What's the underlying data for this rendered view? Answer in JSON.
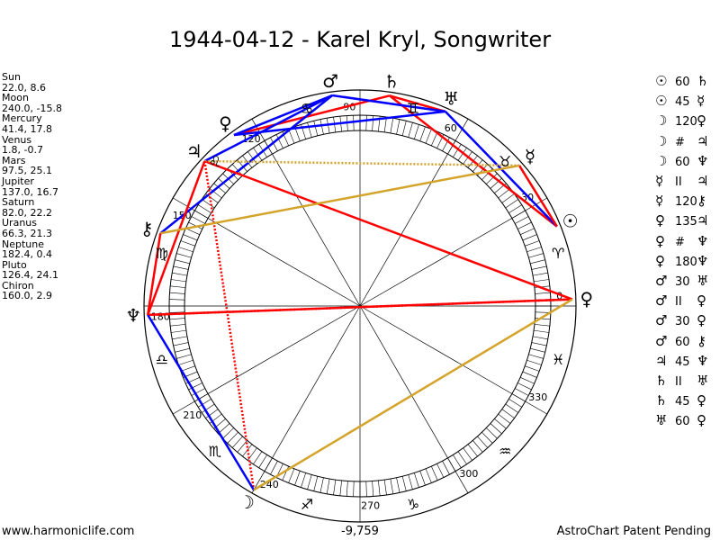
{
  "title": "1944-04-12 - Karel Kryl, Songwriter",
  "footer_left": "www.harmoniclife.com",
  "footer_right": "AstroChart Patent Pending",
  "center_value": "-9,759",
  "degree_labels": [
    "0",
    "30",
    "60",
    "90",
    "120",
    "150",
    "180",
    "210",
    "240",
    "270",
    "300",
    "330"
  ],
  "positions": [
    {
      "name": "Sun",
      "coords": "22.0, 8.6"
    },
    {
      "name": "Moon",
      "coords": "240.0, -15.8"
    },
    {
      "name": "Mercury",
      "coords": "41.4, 17.8"
    },
    {
      "name": "Venus",
      "coords": "1.8, -0.7"
    },
    {
      "name": "Mars",
      "coords": "97.5, 25.1"
    },
    {
      "name": "Jupiter",
      "coords": "137.0, 16.7"
    },
    {
      "name": "Saturn",
      "coords": "82.0, 22.2"
    },
    {
      "name": "Uranus",
      "coords": "66.3, 21.3"
    },
    {
      "name": "Neptune",
      "coords": "182.4, 0.4"
    },
    {
      "name": "Pluto",
      "coords": "126.4, 24.1"
    },
    {
      "name": "Chiron",
      "coords": "160.0, 2.9"
    }
  ],
  "aspects": [
    {
      "p1": "☉",
      "value": "60",
      "p2": "♄"
    },
    {
      "p1": "☉",
      "value": "45",
      "p2": "☿"
    },
    {
      "p1": "☽",
      "value": "120",
      "p2": "♀"
    },
    {
      "p1": "☽",
      "value": "#",
      "p2": "♃"
    },
    {
      "p1": "☽",
      "value": "60",
      "p2": "♆"
    },
    {
      "p1": "☿",
      "value": "II",
      "p2": "♃"
    },
    {
      "p1": "☿",
      "value": "120",
      "p2": "⚷"
    },
    {
      "p1": "♀",
      "value": "135",
      "p2": "♃"
    },
    {
      "p1": "♀",
      "value": "#",
      "p2": "♆"
    },
    {
      "p1": "♀",
      "value": "180",
      "p2": "♆"
    },
    {
      "p1": "♂",
      "value": "30",
      "p2": "♅"
    },
    {
      "p1": "♂",
      "value": "II",
      "p2": "♀"
    },
    {
      "p1": "♂",
      "value": "30",
      "p2": "♀"
    },
    {
      "p1": "♂",
      "value": "60",
      "p2": "⚷"
    },
    {
      "p1": "♃",
      "value": "45",
      "p2": "♆"
    },
    {
      "p1": "♄",
      "value": "II",
      "p2": "♅"
    },
    {
      "p1": "♄",
      "value": "45",
      "p2": "♀"
    },
    {
      "p1": "♅",
      "value": "60",
      "p2": "♀"
    }
  ],
  "planet_glyphs": [
    {
      "name": "sun",
      "glyph": "☉",
      "lon": 22.0,
      "color": "#000000"
    },
    {
      "name": "moon",
      "glyph": "☽",
      "lon": 240.0,
      "color": "#000000"
    },
    {
      "name": "mercury",
      "glyph": "☿",
      "lon": 41.4,
      "color": "#000000"
    },
    {
      "name": "venus",
      "glyph": "♀",
      "lon": 1.8,
      "color": "#000000"
    },
    {
      "name": "mars",
      "glyph": "♂",
      "lon": 97.5,
      "color": "#000000"
    },
    {
      "name": "jupiter",
      "glyph": "♃",
      "lon": 137.0,
      "color": "#000000"
    },
    {
      "name": "saturn",
      "glyph": "♄",
      "lon": 82.0,
      "color": "#000000"
    },
    {
      "name": "uranus",
      "glyph": "♅",
      "lon": 66.3,
      "color": "#000000"
    },
    {
      "name": "neptune",
      "glyph": "♆",
      "lon": 182.4,
      "color": "#000000"
    },
    {
      "name": "pluto",
      "glyph": "♀",
      "lon": 126.4,
      "color": "#000000"
    },
    {
      "name": "chiron",
      "glyph": "⚷",
      "lon": 160.0,
      "color": "#000000"
    }
  ],
  "sign_glyphs": [
    {
      "name": "aries",
      "glyph": "♈",
      "lon": 15
    },
    {
      "name": "taurus",
      "glyph": "♉",
      "lon": 45
    },
    {
      "name": "gemini",
      "glyph": "♊",
      "lon": 75
    },
    {
      "name": "cancer",
      "glyph": "♋",
      "lon": 105
    },
    {
      "name": "leo",
      "glyph": "♌",
      "lon": 135
    },
    {
      "name": "virgo",
      "glyph": "♍",
      "lon": 165
    },
    {
      "name": "libra",
      "glyph": "♎",
      "lon": 195
    },
    {
      "name": "scorpio",
      "glyph": "♏",
      "lon": 225
    },
    {
      "name": "sagittarius",
      "glyph": "♐",
      "lon": 255
    },
    {
      "name": "capricorn",
      "glyph": "♑",
      "lon": 285
    },
    {
      "name": "aquarius",
      "glyph": "♒",
      "lon": 315
    },
    {
      "name": "pisces",
      "glyph": "♓",
      "lon": 345
    }
  ],
  "aspect_lines": [
    {
      "from": 22.0,
      "to": 82.0,
      "color": "#ff0000",
      "style": "solid"
    },
    {
      "from": 22.0,
      "to": 66.3,
      "color": "#0000ff",
      "style": "solid"
    },
    {
      "from": 22.0,
      "to": 41.4,
      "color": "#ff0000",
      "style": "solid"
    },
    {
      "from": 82.0,
      "to": 66.3,
      "color": "#ff0000",
      "style": "solid"
    },
    {
      "from": 82.0,
      "to": 126.4,
      "color": "#ff0000",
      "style": "solid"
    },
    {
      "from": 66.3,
      "to": 126.4,
      "color": "#0000ff",
      "style": "solid"
    },
    {
      "from": 97.5,
      "to": 66.3,
      "color": "#0000ff",
      "style": "solid"
    },
    {
      "from": 97.5,
      "to": 126.4,
      "color": "#0000ff",
      "style": "solid"
    },
    {
      "from": 97.5,
      "to": 160.0,
      "color": "#0000ff",
      "style": "solid"
    },
    {
      "from": 97.5,
      "to": 137.0,
      "color": "#0000ff",
      "style": "solid"
    },
    {
      "from": 137.0,
      "to": 1.8,
      "color": "#ff0000",
      "style": "solid"
    },
    {
      "from": 137.0,
      "to": 182.4,
      "color": "#ff0000",
      "style": "solid"
    },
    {
      "from": 137.0,
      "to": 41.4,
      "color": "#d4a32a",
      "style": "dotted"
    },
    {
      "from": 137.0,
      "to": 240.0,
      "color": "#ff0000",
      "style": "dotted"
    },
    {
      "from": 1.8,
      "to": 182.4,
      "color": "#ff0000",
      "style": "solid"
    },
    {
      "from": 1.8,
      "to": 182.4,
      "color": "#ff0000",
      "style": "dotted"
    },
    {
      "from": 240.0,
      "to": 182.4,
      "color": "#0000ff",
      "style": "solid"
    },
    {
      "from": 240.0,
      "to": 1.8,
      "color": "#d4a32a",
      "style": "solid"
    },
    {
      "from": 160.0,
      "to": 41.4,
      "color": "#d4a32a",
      "style": "solid"
    },
    {
      "from": 160.0,
      "to": 182.4,
      "color": "#ff0000",
      "style": "solid"
    }
  ]
}
